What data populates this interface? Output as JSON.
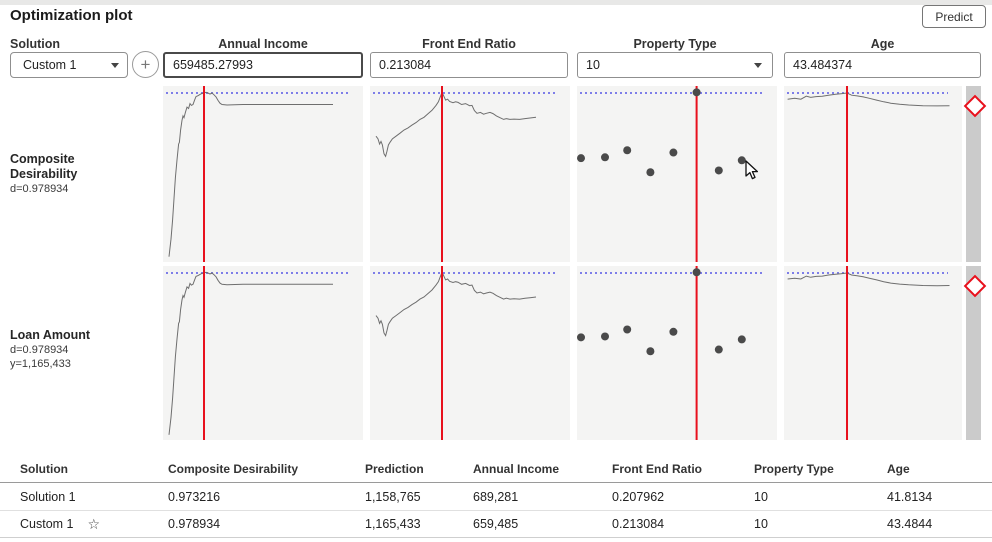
{
  "header": {
    "title": "Optimization plot",
    "predict_label": "Predict"
  },
  "controls": {
    "solution_label": "Solution",
    "solution_value": "Custom 1",
    "add_button_glyph": "+",
    "factors": [
      {
        "name": "Annual Income",
        "value": "659485.27993",
        "control": "text-input"
      },
      {
        "name": "Front End Ratio",
        "value": "0.213084",
        "control": "text-input"
      },
      {
        "name": "Property Type",
        "value": "10",
        "control": "dropdown"
      },
      {
        "name": "Age",
        "value": "43.484374",
        "control": "text-input"
      }
    ]
  },
  "rows": [
    {
      "title": "Composite Desirability",
      "stats": [
        "d=0.978934"
      ]
    },
    {
      "title": "Loan Amount",
      "stats": [
        "d=0.978934",
        "y=1,165,433"
      ]
    }
  ],
  "chart_data": {
    "type": "line",
    "note": "Desirability profiler: 2 response rows (Composite Desirability, Loan Amount) x 4 factor columns; both rows show identical profile traces; red vertical line = current factor setting; blue dotted line = current response level; Property Type column is categorical (dot plot, selected level on red line at top).",
    "dotted_y_frac": 0.04,
    "panels": [
      {
        "factor": "Annual Income",
        "kind": "curve",
        "red_line_x": 0.205,
        "points": [
          [
            0.03,
            0.97
          ],
          [
            0.04,
            0.87
          ],
          [
            0.048,
            0.76
          ],
          [
            0.055,
            0.64
          ],
          [
            0.062,
            0.52
          ],
          [
            0.07,
            0.42
          ],
          [
            0.078,
            0.33
          ],
          [
            0.082,
            0.32
          ],
          [
            0.088,
            0.25
          ],
          [
            0.095,
            0.195
          ],
          [
            0.1,
            0.17
          ],
          [
            0.105,
            0.18
          ],
          [
            0.112,
            0.15
          ],
          [
            0.12,
            0.12
          ],
          [
            0.128,
            0.128
          ],
          [
            0.135,
            0.1
          ],
          [
            0.142,
            0.11
          ],
          [
            0.15,
            0.105
          ],
          [
            0.158,
            0.08
          ],
          [
            0.165,
            0.06
          ],
          [
            0.175,
            0.055
          ],
          [
            0.185,
            0.048
          ],
          [
            0.195,
            0.042
          ],
          [
            0.205,
            0.04
          ],
          [
            0.215,
            0.036
          ],
          [
            0.225,
            0.04
          ],
          [
            0.235,
            0.046
          ],
          [
            0.245,
            0.04
          ],
          [
            0.255,
            0.05
          ],
          [
            0.265,
            0.062
          ],
          [
            0.275,
            0.082
          ],
          [
            0.285,
            0.098
          ],
          [
            0.295,
            0.105
          ],
          [
            0.32,
            0.108
          ],
          [
            0.4,
            0.105
          ],
          [
            0.85,
            0.105
          ]
        ]
      },
      {
        "factor": "Front End Ratio",
        "kind": "curve",
        "red_line_x": 0.36,
        "points": [
          [
            0.03,
            0.285
          ],
          [
            0.04,
            0.3
          ],
          [
            0.048,
            0.33
          ],
          [
            0.055,
            0.315
          ],
          [
            0.062,
            0.335
          ],
          [
            0.07,
            0.385
          ],
          [
            0.078,
            0.4
          ],
          [
            0.085,
            0.37
          ],
          [
            0.092,
            0.335
          ],
          [
            0.1,
            0.32
          ],
          [
            0.112,
            0.3
          ],
          [
            0.13,
            0.285
          ],
          [
            0.15,
            0.268
          ],
          [
            0.17,
            0.25
          ],
          [
            0.19,
            0.238
          ],
          [
            0.21,
            0.222
          ],
          [
            0.23,
            0.208
          ],
          [
            0.25,
            0.19
          ],
          [
            0.27,
            0.178
          ],
          [
            0.29,
            0.158
          ],
          [
            0.31,
            0.138
          ],
          [
            0.33,
            0.11
          ],
          [
            0.342,
            0.09
          ],
          [
            0.352,
            0.06
          ],
          [
            0.36,
            0.035
          ],
          [
            0.368,
            0.055
          ],
          [
            0.378,
            0.08
          ],
          [
            0.388,
            0.075
          ],
          [
            0.398,
            0.088
          ],
          [
            0.415,
            0.095
          ],
          [
            0.428,
            0.09
          ],
          [
            0.44,
            0.093
          ],
          [
            0.458,
            0.105
          ],
          [
            0.478,
            0.1
          ],
          [
            0.498,
            0.112
          ],
          [
            0.51,
            0.11
          ],
          [
            0.522,
            0.14
          ],
          [
            0.535,
            0.155
          ],
          [
            0.552,
            0.15
          ],
          [
            0.568,
            0.16
          ],
          [
            0.582,
            0.155
          ],
          [
            0.6,
            0.15
          ],
          [
            0.615,
            0.157
          ],
          [
            0.632,
            0.17
          ],
          [
            0.65,
            0.18
          ],
          [
            0.668,
            0.19
          ],
          [
            0.682,
            0.185
          ],
          [
            0.7,
            0.19
          ],
          [
            0.72,
            0.188
          ],
          [
            0.748,
            0.19
          ],
          [
            0.775,
            0.185
          ],
          [
            0.8,
            0.182
          ],
          [
            0.83,
            0.178
          ]
        ]
      },
      {
        "factor": "Property Type",
        "kind": "dots",
        "red_line_x": 0.598,
        "points": [
          [
            0.02,
            0.41
          ],
          [
            0.14,
            0.405
          ],
          [
            0.251,
            0.365
          ],
          [
            0.367,
            0.49
          ],
          [
            0.482,
            0.378
          ],
          [
            0.598,
            0.036
          ],
          [
            0.709,
            0.48
          ],
          [
            0.824,
            0.422
          ]
        ]
      },
      {
        "factor": "Age",
        "kind": "curve",
        "red_line_x": 0.354,
        "points": [
          [
            0.02,
            0.075
          ],
          [
            0.06,
            0.07
          ],
          [
            0.095,
            0.075
          ],
          [
            0.125,
            0.058
          ],
          [
            0.15,
            0.065
          ],
          [
            0.18,
            0.06
          ],
          [
            0.215,
            0.058
          ],
          [
            0.25,
            0.052
          ],
          [
            0.29,
            0.047
          ],
          [
            0.32,
            0.044
          ],
          [
            0.354,
            0.04
          ],
          [
            0.38,
            0.052
          ],
          [
            0.41,
            0.056
          ],
          [
            0.445,
            0.062
          ],
          [
            0.48,
            0.07
          ],
          [
            0.52,
            0.08
          ],
          [
            0.56,
            0.09
          ],
          [
            0.6,
            0.098
          ],
          [
            0.65,
            0.104
          ],
          [
            0.7,
            0.108
          ],
          [
            0.78,
            0.112
          ],
          [
            0.86,
            0.113
          ],
          [
            0.93,
            0.112
          ]
        ]
      }
    ]
  },
  "table": {
    "headers": [
      "Solution",
      "Composite Desirability",
      "Prediction",
      "Annual Income",
      "Front End Ratio",
      "Property Type",
      "Age"
    ],
    "rows": [
      {
        "cells": [
          "Solution 1",
          "0.973216",
          "1,158,765",
          "689,281",
          "0.207962",
          "10",
          "41.8134"
        ],
        "starred": false
      },
      {
        "cells": [
          "Custom 1",
          "0.978934",
          "1,165,433",
          "659,485",
          "0.213084",
          "10",
          "43.4844"
        ],
        "starred": true
      }
    ],
    "star_glyph": "☆"
  },
  "colors": {
    "accent_red": "#e8101c",
    "dotted_line": "#7e7ee8",
    "curve": "#6e6e6e",
    "dot": "#4a4a4a",
    "panel_bg": "#f4f4f3",
    "strip_bg": "#cbcbcb"
  }
}
